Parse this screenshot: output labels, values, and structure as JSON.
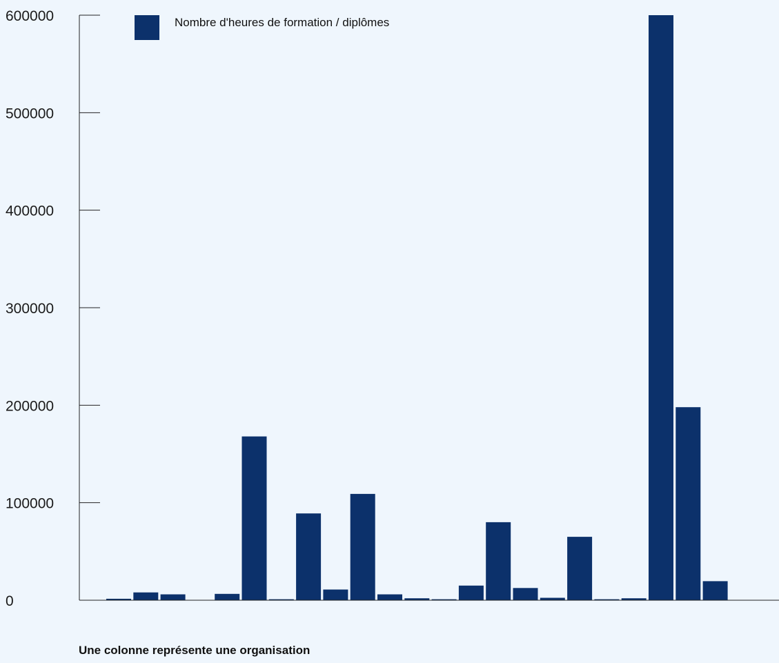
{
  "chart_data": {
    "type": "bar",
    "values": [
      1500,
      8000,
      6000,
      0,
      6500,
      168000,
      1000,
      89000,
      11000,
      109000,
      6000,
      2000,
      1000,
      15000,
      80000,
      12500,
      2500,
      65000,
      1000,
      2000,
      600000,
      198000,
      19500
    ],
    "ylim": [
      0,
      600000
    ],
    "y_ticks": [
      "0",
      "100000",
      "200000",
      "300000",
      "400000",
      "500000",
      "600000"
    ],
    "legend": {
      "label": "Nombre d'heures de formation / diplômes",
      "position": "top-left"
    },
    "caption": "Une colonne représente une organisation",
    "grid": false,
    "colors": {
      "bar": "#0c316b",
      "axis": "#222222",
      "background": "#eff6fd"
    }
  }
}
